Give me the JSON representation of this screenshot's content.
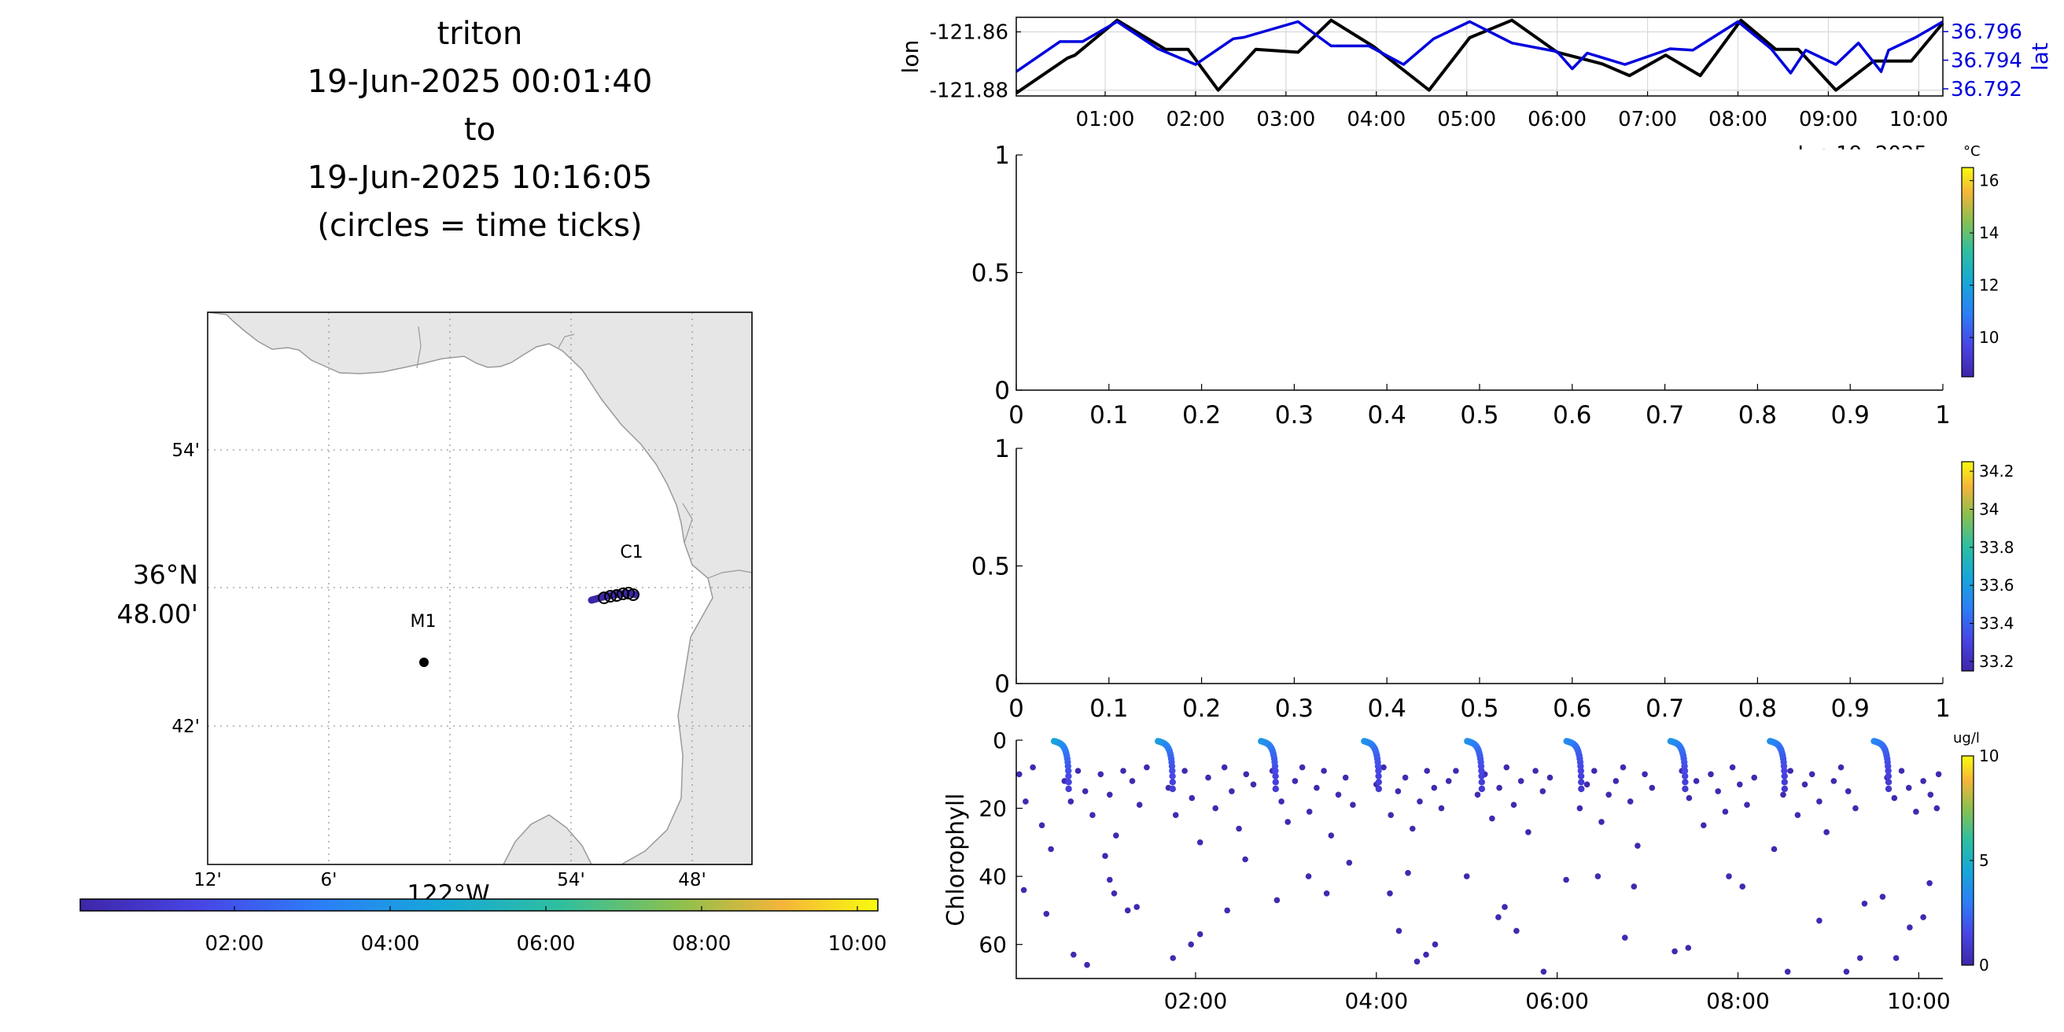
{
  "header": {
    "lines": [
      "triton",
      "19-Jun-2025 00:01:40",
      "to",
      "19-Jun-2025 10:16:05",
      "(circles = time ticks)"
    ]
  },
  "map": {
    "lat_ticks": [
      "54'",
      "36°N",
      "48.00'",
      "42'"
    ],
    "lon_ticks": [
      "12'",
      "6'",
      "54'",
      "48'"
    ],
    "lon_title": "122°W",
    "stations": [
      "C1",
      "M1"
    ],
    "colors": {
      "land": "#e6e6e6",
      "coast": "#9a9a9a",
      "station": "#000000"
    }
  },
  "colorbars": {
    "time": {
      "ticks": [
        "02:00",
        "04:00",
        "06:00",
        "08:00",
        "10:00"
      ]
    },
    "temperature": {
      "unit": "°C",
      "ticks": [
        "16",
        "14",
        "12",
        "10"
      ],
      "range": [
        8.5,
        16.5
      ]
    },
    "salinity": {
      "ticks": [
        "34.2",
        "34",
        "33.8",
        "33.6",
        "33.4",
        "33.2"
      ],
      "range": [
        33.15,
        34.25
      ]
    },
    "chlorophyll": {
      "unit": "ug/l",
      "ticks": [
        "10",
        "5",
        "0"
      ],
      "range": [
        0,
        10
      ]
    }
  },
  "chart_data": [
    {
      "type": "line",
      "ylabel": "lon",
      "y2label": "lat",
      "date_label": "Jun 19, 2025",
      "x_ticks": [
        "01:00",
        "02:00",
        "03:00",
        "04:00",
        "05:00",
        "06:00",
        "07:00",
        "08:00",
        "09:00",
        "10:00"
      ],
      "ylim": [
        -121.882,
        -121.855
      ],
      "y_ticks": [
        "-121.86",
        "-121.88"
      ],
      "y2lim": [
        36.7915,
        36.797
      ],
      "y2_ticks": [
        "36.796",
        "36.794",
        "36.792"
      ],
      "grid": true,
      "series": [
        {
          "name": "lon",
          "color": "#000000",
          "x": [
            "00:01",
            "00:35",
            "00:40",
            "01:08",
            "01:40",
            "01:55",
            "02:15",
            "02:40",
            "03:08",
            "03:30",
            "03:58",
            "04:35",
            "05:02",
            "05:30",
            "06:00",
            "06:30",
            "06:48",
            "07:12",
            "07:35",
            "08:02",
            "08:25",
            "08:40",
            "09:05",
            "09:30",
            "09:55",
            "10:16"
          ],
          "y": [
            -121.881,
            -121.869,
            -121.868,
            -121.856,
            -121.866,
            -121.866,
            -121.88,
            -121.866,
            -121.867,
            -121.856,
            -121.865,
            -121.88,
            -121.862,
            -121.856,
            -121.867,
            -121.871,
            -121.875,
            -121.868,
            -121.875,
            -121.856,
            -121.866,
            -121.866,
            -121.88,
            -121.87,
            -121.87,
            -121.857
          ]
        },
        {
          "name": "lat",
          "color": "#0000dd",
          "x": [
            "00:01",
            "00:30",
            "00:45",
            "01:08",
            "01:35",
            "02:00",
            "02:25",
            "02:32",
            "03:08",
            "03:30",
            "03:55",
            "04:18",
            "04:38",
            "05:02",
            "05:30",
            "06:00",
            "06:10",
            "06:20",
            "06:45",
            "07:15",
            "07:30",
            "08:00",
            "08:22",
            "08:35",
            "08:45",
            "09:05",
            "09:20",
            "09:35",
            "09:40",
            "09:58",
            "10:16"
          ],
          "y": [
            36.7932,
            36.7953,
            36.7953,
            36.7967,
            36.7948,
            36.7937,
            36.7955,
            36.7956,
            36.7967,
            36.795,
            36.795,
            36.7937,
            36.7955,
            36.7967,
            36.7952,
            36.7946,
            36.7934,
            36.7945,
            36.7937,
            36.7948,
            36.7947,
            36.7967,
            36.7948,
            36.7931,
            36.7947,
            36.7937,
            36.7952,
            36.7932,
            36.7947,
            36.7956,
            36.7967
          ]
        }
      ]
    },
    {
      "type": "scatter",
      "name": "temperature",
      "xlim": [
        0,
        1
      ],
      "ylim": [
        0,
        1
      ],
      "x_ticks": [
        "0",
        "0.1",
        "0.2",
        "0.3",
        "0.4",
        "0.5",
        "0.6",
        "0.7",
        "0.8",
        "0.9",
        "1"
      ],
      "y_ticks": [
        "1",
        "0.5",
        "0"
      ],
      "values": []
    },
    {
      "type": "scatter",
      "name": "salinity",
      "xlim": [
        0,
        1
      ],
      "ylim": [
        0,
        1
      ],
      "x_ticks": [
        "0",
        "0.1",
        "0.2",
        "0.3",
        "0.4",
        "0.5",
        "0.6",
        "0.7",
        "0.8",
        "0.9",
        "1"
      ],
      "y_ticks": [
        "1",
        "0.5",
        "0"
      ],
      "values": []
    },
    {
      "type": "scatter",
      "ylabel": "Chlorophyll",
      "x_ticks": [
        "02:00",
        "04:00",
        "06:00",
        "08:00",
        "10:00"
      ],
      "y_ticks": [
        "0",
        "20",
        "40",
        "60"
      ],
      "ylim": [
        70,
        0
      ],
      "color_range": [
        0,
        10
      ],
      "profiles_start_hours": [
        0.43,
        1.58,
        2.72,
        3.86,
        5.0,
        6.1,
        7.25,
        8.35,
        9.5
      ],
      "surface_chl": [
        4.5,
        4.2,
        4.0,
        3.8,
        3.7,
        3.5,
        3.9,
        3.6,
        3.4
      ],
      "points": [
        [
          0.05,
          10
        ],
        [
          0.12,
          18
        ],
        [
          0.2,
          8
        ],
        [
          0.3,
          25
        ],
        [
          0.4,
          32
        ],
        [
          0.55,
          12
        ],
        [
          0.62,
          18
        ],
        [
          0.7,
          9
        ],
        [
          0.78,
          15
        ],
        [
          0.86,
          22
        ],
        [
          0.95,
          10
        ],
        [
          1.05,
          16
        ],
        [
          1.12,
          28
        ],
        [
          1.2,
          9
        ],
        [
          1.3,
          12
        ],
        [
          1.38,
          19
        ],
        [
          1.46,
          8
        ],
        [
          1.7,
          14
        ],
        [
          1.78,
          22
        ],
        [
          1.88,
          9
        ],
        [
          1.96,
          17
        ],
        [
          2.05,
          30
        ],
        [
          2.14,
          11
        ],
        [
          2.22,
          20
        ],
        [
          2.32,
          8
        ],
        [
          2.4,
          15
        ],
        [
          2.48,
          26
        ],
        [
          2.56,
          10
        ],
        [
          2.64,
          13
        ],
        [
          2.85,
          9
        ],
        [
          2.95,
          18
        ],
        [
          3.02,
          24
        ],
        [
          3.1,
          12
        ],
        [
          3.18,
          8
        ],
        [
          3.26,
          21
        ],
        [
          3.34,
          14
        ],
        [
          3.42,
          9
        ],
        [
          3.5,
          28
        ],
        [
          3.58,
          16
        ],
        [
          3.66,
          11
        ],
        [
          3.74,
          19
        ],
        [
          4.0,
          13
        ],
        [
          4.08,
          8
        ],
        [
          4.16,
          22
        ],
        [
          4.24,
          15
        ],
        [
          4.32,
          11
        ],
        [
          4.4,
          26
        ],
        [
          4.48,
          18
        ],
        [
          4.56,
          9
        ],
        [
          4.64,
          14
        ],
        [
          4.72,
          20
        ],
        [
          4.8,
          12
        ],
        [
          4.88,
          9
        ],
        [
          5.12,
          16
        ],
        [
          5.2,
          10
        ],
        [
          5.28,
          23
        ],
        [
          5.36,
          14
        ],
        [
          5.44,
          8
        ],
        [
          5.52,
          19
        ],
        [
          5.6,
          12
        ],
        [
          5.68,
          27
        ],
        [
          5.76,
          9
        ],
        [
          5.84,
          15
        ],
        [
          5.92,
          11
        ],
        [
          6.25,
          20
        ],
        [
          6.33,
          13
        ],
        [
          6.41,
          9
        ],
        [
          6.49,
          24
        ],
        [
          6.57,
          16
        ],
        [
          6.65,
          12
        ],
        [
          6.73,
          8
        ],
        [
          6.81,
          18
        ],
        [
          6.89,
          31
        ],
        [
          6.97,
          10
        ],
        [
          7.05,
          14
        ],
        [
          7.38,
          9
        ],
        [
          7.46,
          17
        ],
        [
          7.54,
          12
        ],
        [
          7.62,
          25
        ],
        [
          7.7,
          10
        ],
        [
          7.78,
          15
        ],
        [
          7.86,
          21
        ],
        [
          7.94,
          8
        ],
        [
          8.02,
          13
        ],
        [
          8.1,
          19
        ],
        [
          8.18,
          11
        ],
        [
          8.5,
          16
        ],
        [
          8.58,
          9
        ],
        [
          8.66,
          22
        ],
        [
          8.74,
          13
        ],
        [
          8.82,
          10
        ],
        [
          8.9,
          18
        ],
        [
          8.98,
          27
        ],
        [
          9.06,
          12
        ],
        [
          9.14,
          8
        ],
        [
          9.22,
          15
        ],
        [
          9.3,
          20
        ],
        [
          9.65,
          11
        ],
        [
          9.73,
          17
        ],
        [
          9.81,
          9
        ],
        [
          9.89,
          14
        ],
        [
          9.97,
          21
        ],
        [
          10.05,
          12
        ],
        [
          10.13,
          16
        ],
        [
          10.22,
          10
        ],
        [
          0.1,
          44
        ],
        [
          0.35,
          51
        ],
        [
          0.65,
          63
        ],
        [
          0.8,
          66
        ],
        [
          1.0,
          34
        ],
        [
          1.05,
          41
        ],
        [
          1.1,
          45
        ],
        [
          1.25,
          50
        ],
        [
          1.35,
          49
        ],
        [
          1.75,
          64
        ],
        [
          1.95,
          60
        ],
        [
          2.05,
          57
        ],
        [
          2.35,
          50
        ],
        [
          2.55,
          35
        ],
        [
          2.9,
          47
        ],
        [
          3.25,
          40
        ],
        [
          3.45,
          45
        ],
        [
          3.7,
          36
        ],
        [
          4.15,
          45
        ],
        [
          4.25,
          56
        ],
        [
          4.35,
          39
        ],
        [
          4.45,
          65
        ],
        [
          4.55,
          63
        ],
        [
          4.65,
          60
        ],
        [
          5.0,
          40
        ],
        [
          5.35,
          52
        ],
        [
          5.42,
          49
        ],
        [
          5.55,
          56
        ],
        [
          5.85,
          68
        ],
        [
          6.1,
          41
        ],
        [
          6.45,
          40
        ],
        [
          6.75,
          58
        ],
        [
          6.85,
          43
        ],
        [
          7.3,
          62
        ],
        [
          7.45,
          61
        ],
        [
          7.9,
          40
        ],
        [
          8.05,
          43
        ],
        [
          8.4,
          32
        ],
        [
          8.55,
          68
        ],
        [
          8.9,
          53
        ],
        [
          9.2,
          68
        ],
        [
          9.35,
          64
        ],
        [
          9.4,
          48
        ],
        [
          9.6,
          46
        ],
        [
          9.75,
          64
        ],
        [
          9.9,
          55
        ],
        [
          10.05,
          52
        ],
        [
          10.12,
          42
        ],
        [
          10.2,
          20
        ]
      ]
    }
  ]
}
